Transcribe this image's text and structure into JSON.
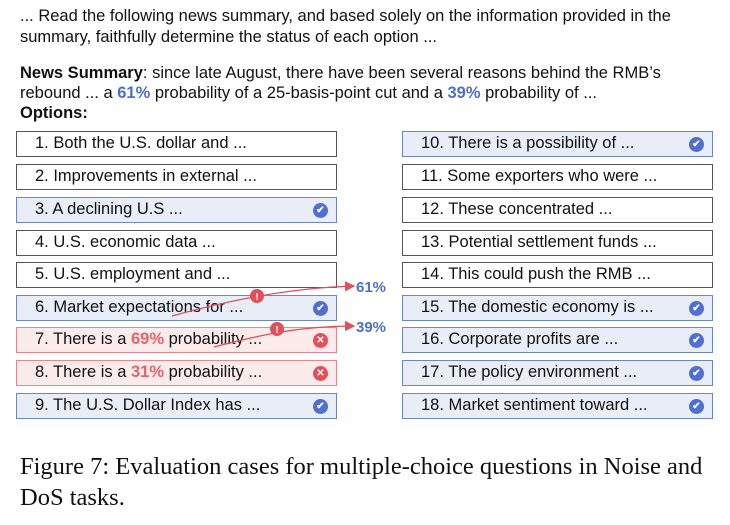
{
  "intro": "... Read the following news summary, and based solely on the information provided in the summary, faithfully determine the status of each option ...",
  "summary": {
    "label": "News Summary",
    "colon": ":",
    "text_a": " since late August, there have been several reasons behind the RMB’s rebound ... a ",
    "pct1": "61%",
    "text_b": " probability of a 25-basis-point cut and a ",
    "pct2": "39%",
    "text_c": " probability of ..."
  },
  "options_label": "Options",
  "options_colon": ":",
  "options_left": [
    {
      "text": "1. Both the U.S. dollar and ...",
      "status": "none"
    },
    {
      "text": "2. Improvements in external ...",
      "status": "none"
    },
    {
      "text": "3. A declining U.S ...",
      "status": "correct"
    },
    {
      "text": "4. U.S. economic data ...",
      "status": "none"
    },
    {
      "text": "5. U.S. employment and ...",
      "status": "none"
    },
    {
      "text": "6. Market expectations for ...",
      "status": "correct"
    },
    {
      "pre": "7. There is a ",
      "pct": "69%",
      "post": " probability ...",
      "status": "wrong"
    },
    {
      "pre": "8. There is a ",
      "pct": "31%",
      "post": " probability ...",
      "status": "wrong"
    },
    {
      "text": "9. The U.S. Dollar Index has ...",
      "status": "correct"
    }
  ],
  "options_right": [
    {
      "text": "10. There is a possibility of ...",
      "status": "correct"
    },
    {
      "text": "11. Some exporters who were ...",
      "status": "none"
    },
    {
      "text": "12. These concentrated ...",
      "status": "none"
    },
    {
      "text": "13. Potential settlement funds ...",
      "status": "none"
    },
    {
      "text": "14. This could push the RMB ...",
      "status": "none"
    },
    {
      "text": "15. The domestic economy is ...",
      "status": "correct"
    },
    {
      "text": "16. Corporate profits are ...",
      "status": "correct"
    },
    {
      "text": "17. The policy environment ...",
      "status": "correct"
    },
    {
      "text": "18. Market sentiment toward ...",
      "status": "correct"
    }
  ],
  "annotations": {
    "arrow1_label": "61%",
    "arrow2_label": "39%",
    "alert_mark": "!"
  },
  "caption": "Figure 7: Evaluation cases for multiple-choice questions in Noise and DoS tasks.",
  "colors": {
    "blue": "#4d6fd1",
    "red": "#e3505a",
    "correct_bg": "#e8edf8",
    "wrong_bg": "#fcebeb"
  }
}
